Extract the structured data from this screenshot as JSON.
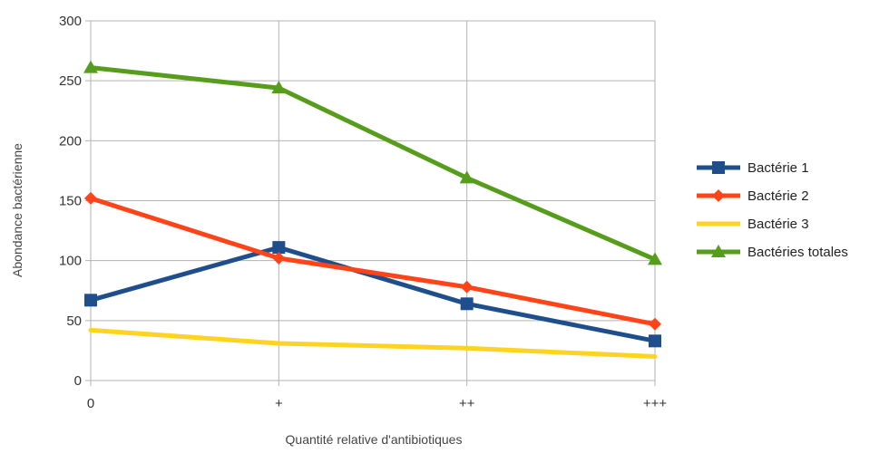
{
  "chart_data": {
    "type": "line",
    "title": "",
    "xlabel": "Quantité relative d'antibiotiques",
    "ylabel": "Abondance bactérienne",
    "categories": [
      "0",
      "+",
      "++",
      "+++"
    ],
    "ylim": [
      0,
      300
    ],
    "yticks": [
      0,
      50,
      100,
      150,
      200,
      250,
      300
    ],
    "grid": "horizontal",
    "legend_position": "right",
    "series": [
      {
        "name": "Bactérie 1",
        "values": [
          67,
          111,
          64,
          33
        ],
        "color": "#1f4e8c",
        "marker": "square"
      },
      {
        "name": "Bactérie 2",
        "values": [
          152,
          102,
          78,
          47
        ],
        "color": "#ff4419",
        "marker": "diamond"
      },
      {
        "name": "Bactérie 3",
        "values": [
          42,
          31,
          27,
          20
        ],
        "color": "#ffd320",
        "marker": "none"
      },
      {
        "name": "Bactéries totales",
        "values": [
          261,
          244,
          169,
          101
        ],
        "color": "#579d1c",
        "marker": "triangle"
      }
    ]
  }
}
